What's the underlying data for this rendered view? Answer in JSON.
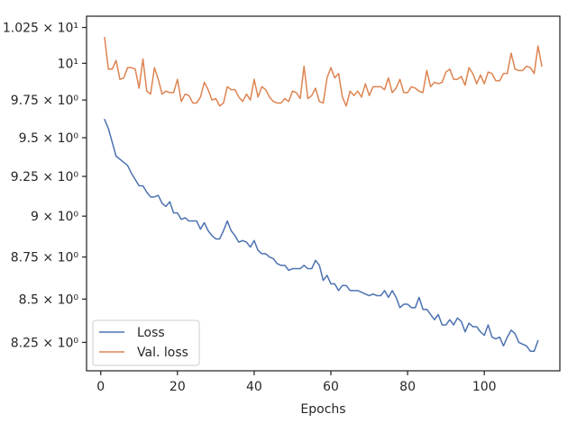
{
  "chart_data": {
    "type": "line",
    "title": "",
    "xlabel": "Epochs",
    "ylabel": "",
    "y_scale": "log",
    "xlim": [
      -3.7,
      119.7
    ],
    "ylim": [
      8.09,
      10.33
    ],
    "grid": false,
    "legend_position": "lower-left",
    "x_ticks": [
      {
        "value": 0,
        "label": "0"
      },
      {
        "value": 20,
        "label": "20"
      },
      {
        "value": 40,
        "label": "40"
      },
      {
        "value": 60,
        "label": "60"
      },
      {
        "value": 80,
        "label": "80"
      },
      {
        "value": 100,
        "label": "100"
      }
    ],
    "y_ticks": [
      {
        "value": 8.25,
        "label": "8.25 × 10⁰"
      },
      {
        "value": 8.5,
        "label": "8.5 × 10⁰"
      },
      {
        "value": 8.75,
        "label": "8.75 × 10⁰"
      },
      {
        "value": 9.0,
        "label": "9 × 10⁰"
      },
      {
        "value": 9.25,
        "label": "9.25 × 10⁰"
      },
      {
        "value": 9.5,
        "label": "9.5 × 10⁰"
      },
      {
        "value": 9.75,
        "label": "9.75 × 10⁰"
      },
      {
        "value": 10.0,
        "label": "10¹"
      },
      {
        "value": 10.25,
        "label": "1.025 × 10¹"
      }
    ],
    "x_start": 1,
    "series": [
      {
        "name": "Loss",
        "color": "#4c72b0",
        "values": [
          9.62,
          9.56,
          9.47,
          9.38,
          9.36,
          9.34,
          9.32,
          9.27,
          9.23,
          9.19,
          9.19,
          9.15,
          9.12,
          9.12,
          9.13,
          9.08,
          9.06,
          9.09,
          9.02,
          9.02,
          8.98,
          8.99,
          8.97,
          8.97,
          8.97,
          8.92,
          8.96,
          8.91,
          8.88,
          8.86,
          8.86,
          8.91,
          8.97,
          8.91,
          8.88,
          8.84,
          8.85,
          8.84,
          8.81,
          8.85,
          8.79,
          8.77,
          8.77,
          8.75,
          8.74,
          8.71,
          8.7,
          8.7,
          8.67,
          8.68,
          8.68,
          8.68,
          8.7,
          8.68,
          8.68,
          8.73,
          8.7,
          8.61,
          8.64,
          8.59,
          8.59,
          8.55,
          8.58,
          8.58,
          8.55,
          8.55,
          8.55,
          8.54,
          8.53,
          8.52,
          8.53,
          8.52,
          8.52,
          8.55,
          8.51,
          8.55,
          8.51,
          8.45,
          8.47,
          8.47,
          8.45,
          8.45,
          8.51,
          8.44,
          8.44,
          8.41,
          8.38,
          8.41,
          8.35,
          8.35,
          8.38,
          8.35,
          8.39,
          8.37,
          8.31,
          8.36,
          8.34,
          8.34,
          8.31,
          8.29,
          8.35,
          8.28,
          8.27,
          8.28,
          8.23,
          8.28,
          8.32,
          8.3,
          8.25,
          8.24,
          8.23,
          8.2,
          8.2,
          8.26
        ]
      },
      {
        "name": "Val. loss",
        "color": "#dd8452",
        "values": [
          10.18,
          9.96,
          9.96,
          10.02,
          9.89,
          9.9,
          9.97,
          9.97,
          9.96,
          9.83,
          10.03,
          9.81,
          9.79,
          9.97,
          9.89,
          9.79,
          9.81,
          9.8,
          9.8,
          9.89,
          9.74,
          9.79,
          9.78,
          9.73,
          9.73,
          9.77,
          9.87,
          9.82,
          9.75,
          9.76,
          9.71,
          9.73,
          9.84,
          9.82,
          9.82,
          9.77,
          9.74,
          9.79,
          9.75,
          9.89,
          9.77,
          9.84,
          9.82,
          9.77,
          9.74,
          9.73,
          9.73,
          9.76,
          9.74,
          9.81,
          9.8,
          9.76,
          9.98,
          9.76,
          9.78,
          9.83,
          9.74,
          9.73,
          9.9,
          9.97,
          9.9,
          9.93,
          9.77,
          9.71,
          9.81,
          9.78,
          9.81,
          9.77,
          9.86,
          9.78,
          9.84,
          9.84,
          9.84,
          9.82,
          9.9,
          9.8,
          9.83,
          9.89,
          9.8,
          9.8,
          9.84,
          9.83,
          9.81,
          9.8,
          9.95,
          9.84,
          9.87,
          9.86,
          9.87,
          9.94,
          9.96,
          9.89,
          9.89,
          9.91,
          9.85,
          9.97,
          9.93,
          9.86,
          9.92,
          9.86,
          9.94,
          9.93,
          9.88,
          9.88,
          9.93,
          9.93,
          10.07,
          9.96,
          9.95,
          9.95,
          9.98,
          9.97,
          9.93,
          10.12,
          9.98
        ]
      }
    ]
  }
}
